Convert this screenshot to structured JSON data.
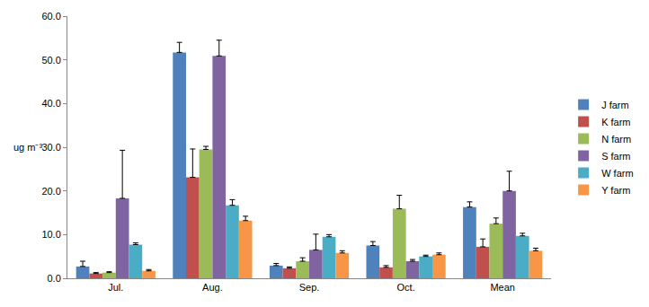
{
  "chart_data": {
    "type": "bar",
    "ylabel": "ug m⁻³",
    "categories": [
      "Jul.",
      "Aug.",
      "Sep.",
      "Oct.",
      "Mean"
    ],
    "series": [
      {
        "name": "J farm",
        "color": "#4F81BD",
        "values": [
          2.7,
          51.7,
          2.9,
          7.5,
          16.3
        ],
        "errors": [
          1.2,
          2.3,
          0.5,
          0.9,
          1.2
        ]
      },
      {
        "name": "K farm",
        "color": "#C0504D",
        "values": [
          1.1,
          23.1,
          2.3,
          2.5,
          7.2
        ],
        "errors": [
          0.2,
          6.5,
          0.3,
          0.4,
          1.8
        ]
      },
      {
        "name": "N farm",
        "color": "#9BBB59",
        "values": [
          1.3,
          29.5,
          3.9,
          15.9,
          12.5
        ],
        "errors": [
          0.2,
          0.7,
          0.8,
          3.1,
          1.3
        ]
      },
      {
        "name": "S farm",
        "color": "#8064A2",
        "values": [
          18.3,
          50.9,
          6.5,
          3.9,
          20.0
        ],
        "errors": [
          11.0,
          3.6,
          3.6,
          0.4,
          4.5
        ]
      },
      {
        "name": "W farm",
        "color": "#4BACC6",
        "values": [
          7.7,
          16.7,
          9.5,
          5.0,
          9.7
        ],
        "errors": [
          0.4,
          1.3,
          0.5,
          0.3,
          0.6
        ]
      },
      {
        "name": "Y farm",
        "color": "#F79646",
        "values": [
          1.7,
          13.2,
          5.8,
          5.4,
          6.3
        ],
        "errors": [
          0.3,
          1.0,
          0.5,
          0.4,
          0.6
        ]
      }
    ],
    "ylim": [
      0,
      60
    ],
    "yticks": [
      {
        "value": 0,
        "label": "0.0"
      },
      {
        "value": 10,
        "label": "10.0"
      },
      {
        "value": 20,
        "label": "20.0"
      },
      {
        "value": 30,
        "label": "30.0"
      },
      {
        "value": 40,
        "label": "40.0"
      },
      {
        "value": 50,
        "label": "50.0"
      },
      {
        "value": 60,
        "label": "60.0"
      }
    ],
    "grid": false,
    "legend": "right"
  }
}
